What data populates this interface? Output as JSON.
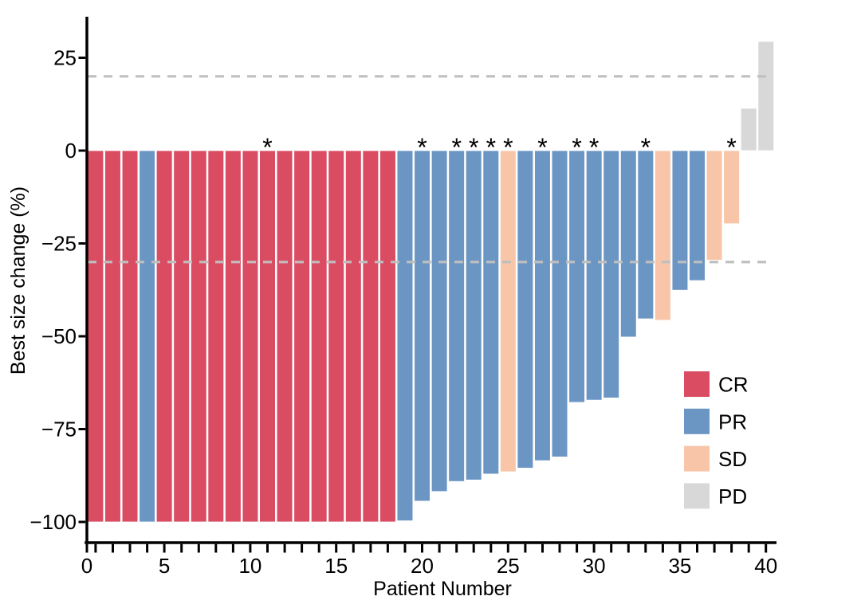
{
  "chart_data": {
    "type": "bar",
    "subtype": "waterfall",
    "title": "",
    "xlabel": "Patient Number",
    "ylabel": "Best size change (%)",
    "xlim": [
      0,
      41
    ],
    "ylim": [
      -105,
      36
    ],
    "grid": false,
    "x_ticks_labeled": [
      0,
      5,
      10,
      15,
      20,
      25,
      30,
      35,
      40
    ],
    "x_tick_labels": [
      "0",
      "5",
      "10",
      "15",
      "20",
      "25",
      "30",
      "35",
      "40"
    ],
    "x_minor_tick_every_patient": true,
    "y_ticks": [
      25,
      0,
      -25,
      -50,
      -75,
      -100
    ],
    "y_tick_labels": [
      "25",
      "0",
      "−25",
      "−50",
      "−75",
      "−100"
    ],
    "reference_lines": [
      20,
      -30
    ],
    "reference_line_style": "dashed",
    "reference_line_color": "#BFBFBF",
    "annotation_marker": "*",
    "colors": {
      "CR": "#D94C61",
      "PR": "#6B96C4",
      "SD": "#F8C5A9",
      "PD": "#D8D8D8",
      "axis": "#000000"
    },
    "legend_position": "inside-bottom-right",
    "legend": [
      {
        "key": "CR",
        "label": "CR"
      },
      {
        "key": "PR",
        "label": "PR"
      },
      {
        "key": "SD",
        "label": "SD"
      },
      {
        "key": "PD",
        "label": "PD"
      }
    ],
    "patients": [
      {
        "patient": 1,
        "value": -100,
        "response": "CR",
        "asterisk": false
      },
      {
        "patient": 2,
        "value": -100,
        "response": "CR",
        "asterisk": false
      },
      {
        "patient": 3,
        "value": -100,
        "response": "CR",
        "asterisk": false
      },
      {
        "patient": 4,
        "value": -100,
        "response": "PR",
        "asterisk": false
      },
      {
        "patient": 5,
        "value": -100,
        "response": "CR",
        "asterisk": false
      },
      {
        "patient": 6,
        "value": -100,
        "response": "CR",
        "asterisk": false
      },
      {
        "patient": 7,
        "value": -100,
        "response": "CR",
        "asterisk": false
      },
      {
        "patient": 8,
        "value": -100,
        "response": "CR",
        "asterisk": false
      },
      {
        "patient": 9,
        "value": -100,
        "response": "CR",
        "asterisk": false
      },
      {
        "patient": 10,
        "value": -100,
        "response": "CR",
        "asterisk": false
      },
      {
        "patient": 11,
        "value": -100,
        "response": "CR",
        "asterisk": true
      },
      {
        "patient": 12,
        "value": -100,
        "response": "CR",
        "asterisk": false
      },
      {
        "patient": 13,
        "value": -100,
        "response": "CR",
        "asterisk": false
      },
      {
        "patient": 14,
        "value": -100,
        "response": "CR",
        "asterisk": false
      },
      {
        "patient": 15,
        "value": -100,
        "response": "CR",
        "asterisk": false
      },
      {
        "patient": 16,
        "value": -100,
        "response": "CR",
        "asterisk": false
      },
      {
        "patient": 17,
        "value": -100,
        "response": "CR",
        "asterisk": false
      },
      {
        "patient": 18,
        "value": -100,
        "response": "CR",
        "asterisk": false
      },
      {
        "patient": 19,
        "value": -99.7,
        "response": "PR",
        "asterisk": false
      },
      {
        "patient": 20,
        "value": -94.4,
        "response": "PR",
        "asterisk": true
      },
      {
        "patient": 21,
        "value": -91.8,
        "response": "PR",
        "asterisk": false
      },
      {
        "patient": 22,
        "value": -89.1,
        "response": "PR",
        "asterisk": true
      },
      {
        "patient": 23,
        "value": -88.7,
        "response": "PR",
        "asterisk": true
      },
      {
        "patient": 24,
        "value": -87.1,
        "response": "PR",
        "asterisk": true
      },
      {
        "patient": 25,
        "value": -86.5,
        "response": "SD",
        "asterisk": true
      },
      {
        "patient": 26,
        "value": -85.5,
        "response": "PR",
        "asterisk": false
      },
      {
        "patient": 27,
        "value": -83.5,
        "response": "PR",
        "asterisk": true
      },
      {
        "patient": 28,
        "value": -82.5,
        "response": "PR",
        "asterisk": false
      },
      {
        "patient": 29,
        "value": -67.8,
        "response": "PR",
        "asterisk": true
      },
      {
        "patient": 30,
        "value": -67.2,
        "response": "PR",
        "asterisk": true
      },
      {
        "patient": 31,
        "value": -66.6,
        "response": "PR",
        "asterisk": false
      },
      {
        "patient": 32,
        "value": -50.2,
        "response": "PR",
        "asterisk": false
      },
      {
        "patient": 33,
        "value": -45.3,
        "response": "PR",
        "asterisk": true
      },
      {
        "patient": 34,
        "value": -45.7,
        "response": "SD",
        "asterisk": false
      },
      {
        "patient": 35,
        "value": -37.6,
        "response": "PR",
        "asterisk": false
      },
      {
        "patient": 36,
        "value": -35.0,
        "response": "PR",
        "asterisk": false
      },
      {
        "patient": 37,
        "value": -29.5,
        "response": "SD",
        "asterisk": false
      },
      {
        "patient": 38,
        "value": -19.7,
        "response": "SD",
        "asterisk": true
      },
      {
        "patient": 39,
        "value": 11.4,
        "response": "PD",
        "asterisk": false
      },
      {
        "patient": 40,
        "value": 29.4,
        "response": "PD",
        "asterisk": false
      }
    ]
  }
}
